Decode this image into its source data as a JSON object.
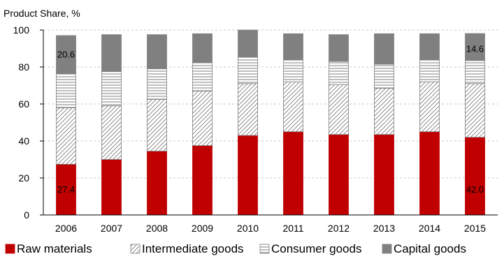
{
  "chart_data": {
    "type": "bar",
    "stacked": true,
    "title": "",
    "ylabel": "Product Share, %",
    "xlabel": "",
    "ylim": [
      0,
      100
    ],
    "yticks": [
      0,
      20,
      40,
      60,
      80,
      100
    ],
    "grid": true,
    "legend_position": "bottom",
    "categories": [
      "2006",
      "2007",
      "2008",
      "2009",
      "2010",
      "2011",
      "2012",
      "2013",
      "2014",
      "2015"
    ],
    "series": [
      {
        "name": "Raw materials",
        "pattern": "solid-red",
        "color": "#c00000",
        "values": [
          27.4,
          30,
          34.5,
          37.5,
          43,
          45,
          43.5,
          43.5,
          45,
          42.0
        ]
      },
      {
        "name": "Intermediate goods",
        "pattern": "diagonal-hatch",
        "color": "#7f7f7f",
        "values": [
          30.5,
          29,
          28,
          29.5,
          28,
          27,
          27,
          25,
          27,
          29
        ]
      },
      {
        "name": "Consumer goods",
        "pattern": "horizontal-lines",
        "color": "#7f7f7f",
        "values": [
          18.5,
          18.5,
          16.5,
          15.5,
          14.5,
          12,
          12.5,
          13,
          12,
          12.5
        ]
      },
      {
        "name": "Capital goods",
        "pattern": "solid-gray",
        "color": "#808080",
        "values": [
          20.6,
          20,
          18.5,
          15.5,
          14.5,
          14,
          14.5,
          16.5,
          14,
          14.6
        ]
      }
    ],
    "annotations": [
      {
        "text": "20.6",
        "category": "2006",
        "y": 87
      },
      {
        "text": "27.4",
        "category": "2006",
        "y": 14
      },
      {
        "text": "14.6",
        "category": "2015",
        "y": 90
      },
      {
        "text": "42.0",
        "category": "2015",
        "y": 14
      }
    ]
  }
}
